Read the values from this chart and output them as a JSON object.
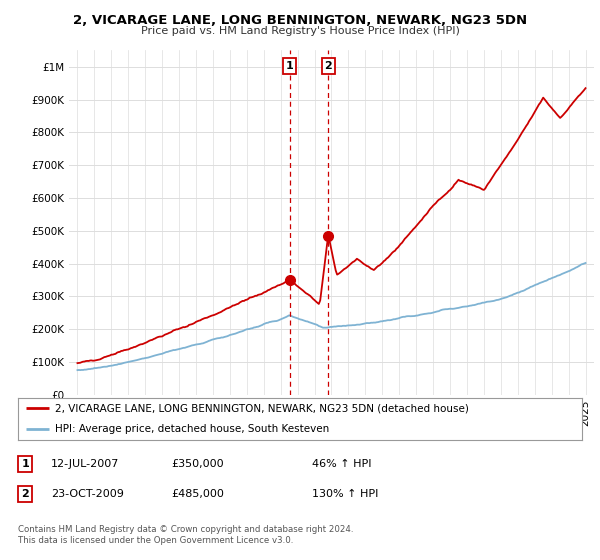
{
  "title": "2, VICARAGE LANE, LONG BENNINGTON, NEWARK, NG23 5DN",
  "subtitle": "Price paid vs. HM Land Registry's House Price Index (HPI)",
  "ytick_values": [
    0,
    100000,
    200000,
    300000,
    400000,
    500000,
    600000,
    700000,
    800000,
    900000,
    1000000
  ],
  "ylim": [
    0,
    1050000
  ],
  "xlim_start": 1994.5,
  "xlim_end": 2025.5,
  "sale1_x": 2007.53,
  "sale1_y": 350000,
  "sale2_x": 2009.81,
  "sale2_y": 485000,
  "legend_line1": "2, VICARAGE LANE, LONG BENNINGTON, NEWARK, NG23 5DN (detached house)",
  "legend_line2": "HPI: Average price, detached house, South Kesteven",
  "table_row1": [
    "1",
    "12-JUL-2007",
    "£350,000",
    "46% ↑ HPI"
  ],
  "table_row2": [
    "2",
    "23-OCT-2009",
    "£485,000",
    "130% ↑ HPI"
  ],
  "footer": "Contains HM Land Registry data © Crown copyright and database right 2024.\nThis data is licensed under the Open Government Licence v3.0.",
  "red_color": "#cc0000",
  "blue_color": "#7fb3d3",
  "background_color": "#ffffff",
  "grid_color": "#dddddd"
}
